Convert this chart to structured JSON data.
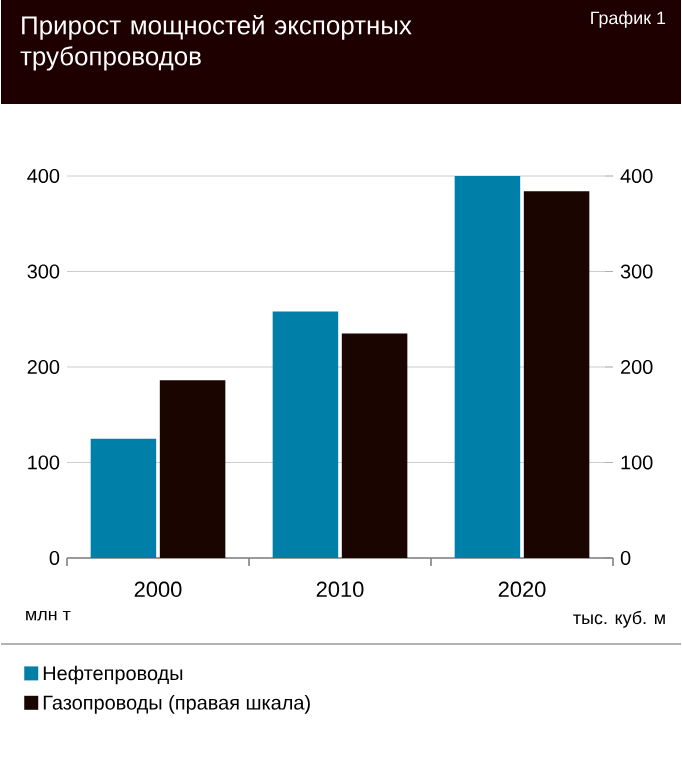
{
  "chart_data": {
    "type": "bar",
    "title": "Прирост мощностей экспортных трубопроводов",
    "annotations": [
      "График 1"
    ],
    "categories": [
      "2000",
      "2010",
      "2020"
    ],
    "series": [
      {
        "name": "Нефтепроводы",
        "color": "#0080a8",
        "values": [
          125,
          258,
          400
        ]
      },
      {
        "name": "Газопроводы (правая шкала)",
        "color": "#1a0500",
        "values": [
          186,
          235,
          384
        ],
        "axis": "y2"
      }
    ],
    "ylabel": "млн т",
    "y2label": "тыс. куб. м",
    "ylim": [
      0,
      400
    ],
    "yticks": [
      0,
      100,
      200,
      300,
      400
    ],
    "y2lim": [
      0,
      400
    ],
    "y2ticks": [
      0,
      100,
      200,
      300,
      400
    ],
    "grid": "y",
    "legend": "bottom"
  }
}
